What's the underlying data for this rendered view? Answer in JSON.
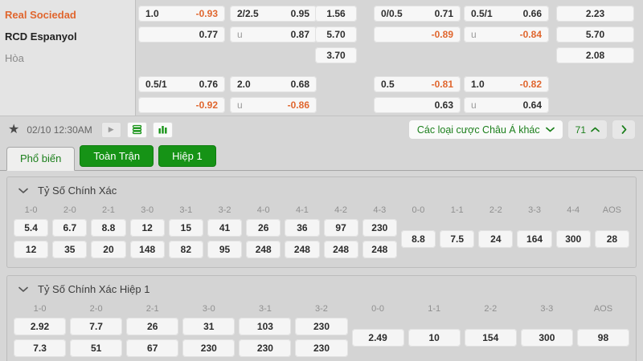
{
  "colors": {
    "green": "#169316",
    "green_border": "#0f7d0f",
    "green_text": "#1b7f1b",
    "orange": "#e0662e"
  },
  "match": {
    "teams": [
      {
        "name": "Real Sociedad",
        "role": "home"
      },
      {
        "name": "RCD Espanyol",
        "role": "away"
      },
      {
        "name": "Hòa",
        "role": "draw"
      }
    ]
  },
  "odds_board": {
    "columns": [
      {
        "id": "handicap-full",
        "cells": [
          {
            "row": 1,
            "line": "1.0",
            "value": "-0.93"
          },
          {
            "row": 2,
            "value": "0.77",
            "align": "right"
          },
          {
            "row": 4,
            "line": "0.5/1",
            "value": "0.76"
          },
          {
            "row": 5,
            "value": "-0.92",
            "align": "right"
          }
        ]
      },
      {
        "id": "over-under-full",
        "cells": [
          {
            "row": 1,
            "line": "2/2.5",
            "value": "0.95"
          },
          {
            "row": 2,
            "line": "u",
            "value": "0.87"
          },
          {
            "row": 4,
            "line": "2.0",
            "value": "0.68"
          },
          {
            "row": 5,
            "line": "u",
            "value": "-0.86"
          }
        ]
      },
      {
        "id": "1x2-full",
        "cells": [
          {
            "row": 1,
            "value": "1.56",
            "align": "center"
          },
          {
            "row": 2,
            "value": "5.70",
            "align": "center"
          },
          {
            "row": 3,
            "value": "3.70",
            "align": "center"
          }
        ]
      },
      {
        "id": "handicap-half1",
        "cells": [
          {
            "row": 1,
            "line": "0/0.5",
            "value": "0.71"
          },
          {
            "row": 2,
            "value": "-0.89",
            "align": "right"
          },
          {
            "row": 4,
            "line": "0.5",
            "value": "-0.81"
          },
          {
            "row": 5,
            "value": "0.63",
            "align": "right"
          }
        ]
      },
      {
        "id": "over-under-half1",
        "cells": [
          {
            "row": 1,
            "line": "0.5/1",
            "value": "0.66"
          },
          {
            "row": 2,
            "line": "u",
            "value": "-0.84"
          },
          {
            "row": 4,
            "line": "1.0",
            "value": "-0.82"
          },
          {
            "row": 5,
            "line": "u",
            "value": "0.64"
          }
        ]
      },
      {
        "id": "1x2-half1",
        "cells": [
          {
            "row": 1,
            "value": "2.23",
            "align": "center"
          },
          {
            "row": 2,
            "value": "5.70",
            "align": "center"
          },
          {
            "row": 3,
            "value": "2.08",
            "align": "center"
          }
        ]
      }
    ]
  },
  "toolbar": {
    "star_icon": "★",
    "date": "02/10 12:30AM",
    "play_icon": "▶",
    "market_dropdown": "Các loại cược Châu Á khác",
    "market_count": "71"
  },
  "tabs": [
    {
      "label": "Phổ biến",
      "active": true
    },
    {
      "label": "Toàn Trận",
      "active": false
    },
    {
      "label": "Hiệp 1",
      "active": false
    }
  ],
  "sections": [
    {
      "title": "Tỷ Số Chính Xác",
      "columns": [
        {
          "label": "1-0",
          "values": [
            "5.4",
            "12"
          ]
        },
        {
          "label": "2-0",
          "values": [
            "6.7",
            "35"
          ]
        },
        {
          "label": "2-1",
          "values": [
            "8.8",
            "20"
          ]
        },
        {
          "label": "3-0",
          "values": [
            "12",
            "148"
          ]
        },
        {
          "label": "3-1",
          "values": [
            "15",
            "82"
          ]
        },
        {
          "label": "3-2",
          "values": [
            "41",
            "95"
          ]
        },
        {
          "label": "4-0",
          "values": [
            "26",
            "248"
          ]
        },
        {
          "label": "4-1",
          "values": [
            "36",
            "248"
          ]
        },
        {
          "label": "4-2",
          "values": [
            "97",
            "248"
          ]
        },
        {
          "label": "4-3",
          "values": [
            "230",
            "248"
          ]
        },
        {
          "label": "0-0",
          "values": [
            "8.8"
          ]
        },
        {
          "label": "1-1",
          "values": [
            "7.5"
          ]
        },
        {
          "label": "2-2",
          "values": [
            "24"
          ]
        },
        {
          "label": "3-3",
          "values": [
            "164"
          ]
        },
        {
          "label": "4-4",
          "values": [
            "300"
          ]
        },
        {
          "label": "AOS",
          "values": [
            "28"
          ]
        }
      ]
    },
    {
      "title": "Tỷ Số Chính Xác Hiệp 1",
      "columns": [
        {
          "label": "1-0",
          "values": [
            "2.92",
            "7.3"
          ]
        },
        {
          "label": "2-0",
          "values": [
            "7.7",
            "51"
          ]
        },
        {
          "label": "2-1",
          "values": [
            "26",
            "67"
          ]
        },
        {
          "label": "3-0",
          "values": [
            "31",
            "230"
          ]
        },
        {
          "label": "3-1",
          "values": [
            "103",
            "230"
          ]
        },
        {
          "label": "3-2",
          "values": [
            "230",
            "230"
          ]
        },
        {
          "label": "0-0",
          "values": [
            "2.49"
          ]
        },
        {
          "label": "1-1",
          "values": [
            "10"
          ]
        },
        {
          "label": "2-2",
          "values": [
            "154"
          ]
        },
        {
          "label": "3-3",
          "values": [
            "300"
          ]
        },
        {
          "label": "AOS",
          "values": [
            "98"
          ]
        }
      ]
    }
  ]
}
